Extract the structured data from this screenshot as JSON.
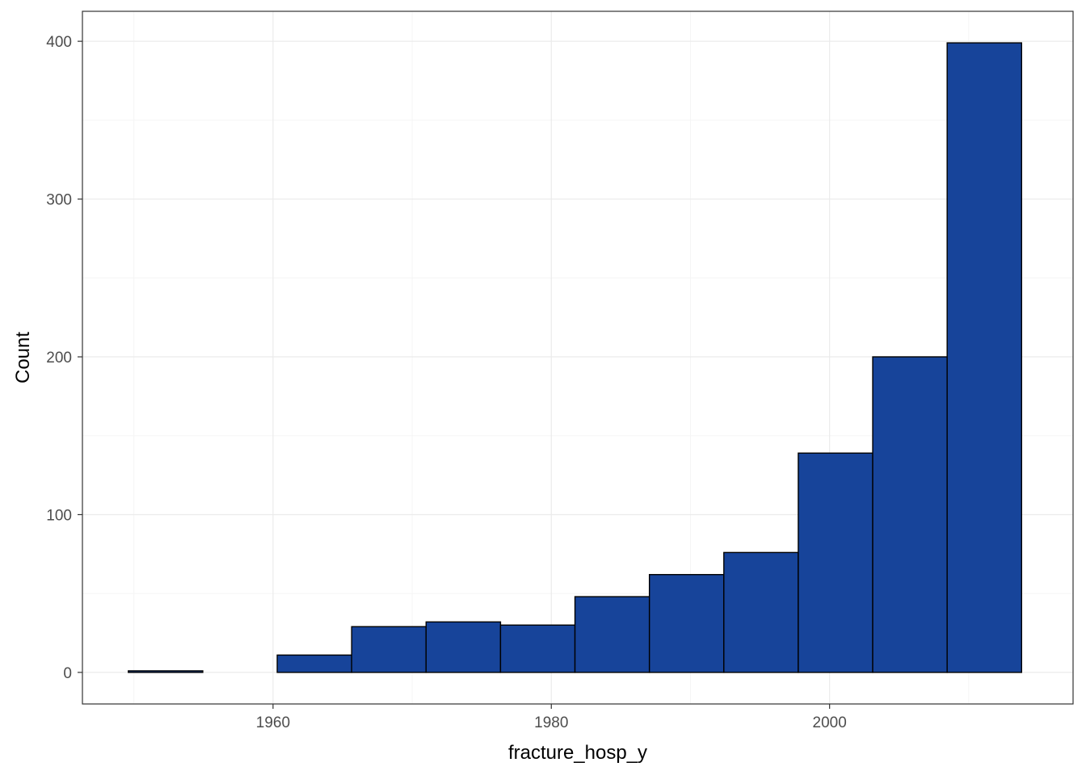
{
  "chart_data": {
    "type": "bar",
    "title": "",
    "xlabel": "fracture_hosp_y",
    "ylabel": "Count",
    "xlim": [
      1946.3,
      2017.5
    ],
    "ylim": [
      -20,
      419
    ],
    "x_ticks": [
      1960,
      1980,
      2000
    ],
    "x_tick_labels": [
      "1960",
      "1980",
      "2000"
    ],
    "y_ticks": [
      0,
      100,
      200,
      300,
      400
    ],
    "y_tick_labels": [
      "0",
      "100",
      "200",
      "300",
      "400"
    ],
    "grid": true,
    "legend": "none",
    "bin_width": 5.35,
    "bins": [
      {
        "start": 1949.6,
        "end": 1954.95,
        "count": 1
      },
      {
        "start": 1954.95,
        "end": 1960.3,
        "count": 0
      },
      {
        "start": 1960.3,
        "end": 1965.65,
        "count": 11
      },
      {
        "start": 1965.65,
        "end": 1971.0,
        "count": 29
      },
      {
        "start": 1971.0,
        "end": 1976.35,
        "count": 32
      },
      {
        "start": 1976.35,
        "end": 1981.7,
        "count": 30
      },
      {
        "start": 1981.7,
        "end": 1987.05,
        "count": 48
      },
      {
        "start": 1987.05,
        "end": 1992.4,
        "count": 62
      },
      {
        "start": 1992.4,
        "end": 1997.75,
        "count": 76
      },
      {
        "start": 1997.75,
        "end": 2003.1,
        "count": 139
      },
      {
        "start": 2003.1,
        "end": 2008.45,
        "count": 200
      },
      {
        "start": 2008.45,
        "end": 2013.8,
        "count": 399
      }
    ],
    "colors": {
      "bar_fill": "#17449A",
      "bar_stroke": "#000000",
      "grid_major": "#EBEBEB",
      "grid_minor": "#F5F5F5",
      "panel_border": "#333333",
      "tick_color": "#333333",
      "tick_text": "#4D4D4D"
    }
  }
}
